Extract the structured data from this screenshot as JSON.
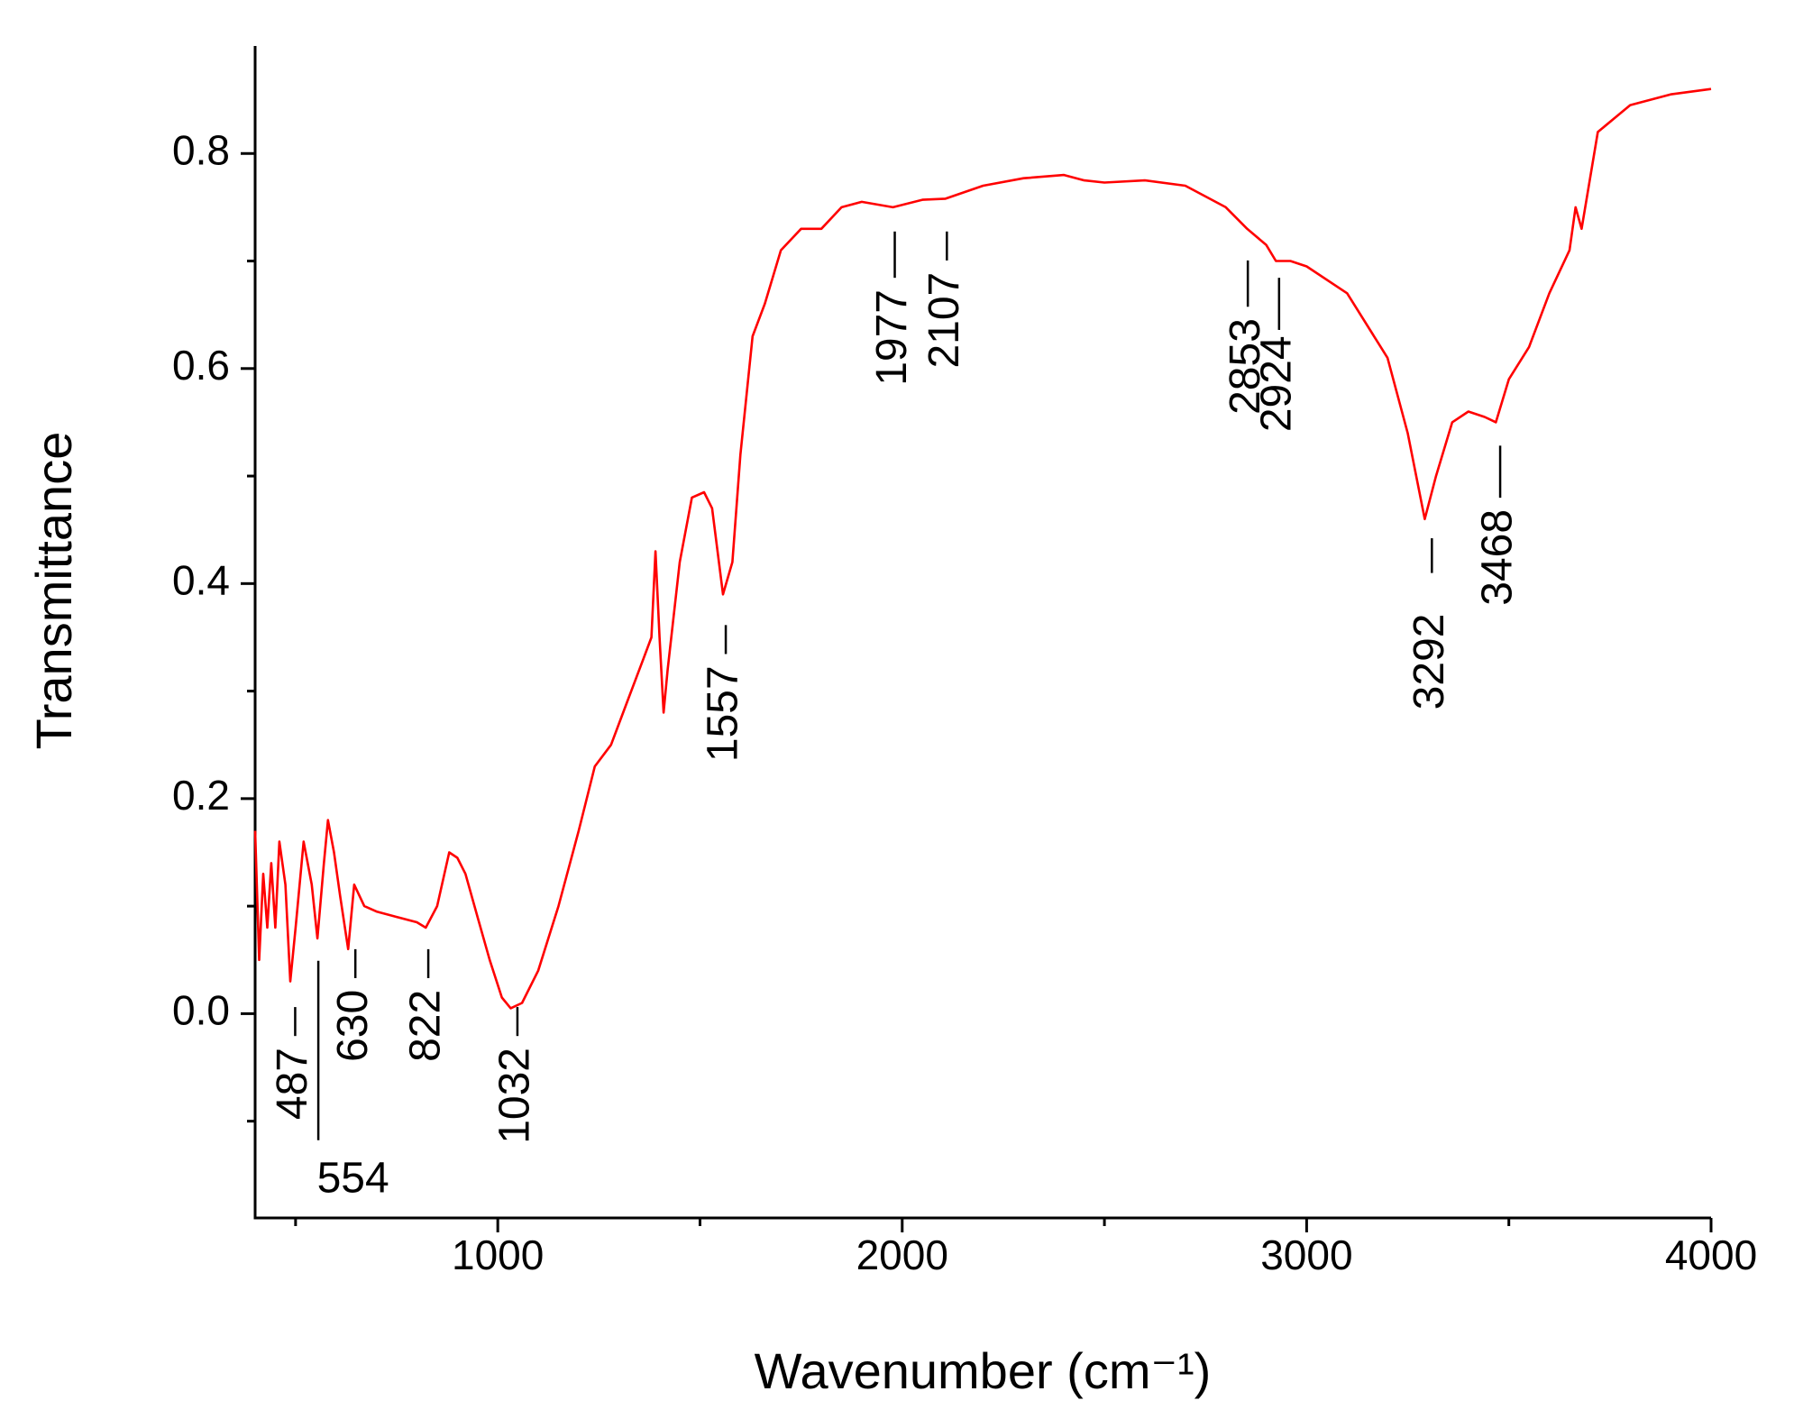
{
  "chart_data": {
    "type": "line",
    "xlabel": "Wavenumber (cm⁻¹)",
    "ylabel": "Transmittance",
    "xlim": [
      400,
      4000
    ],
    "ylim": [
      -0.19,
      0.9
    ],
    "xticks": [
      1000,
      2000,
      3000,
      4000
    ],
    "xticks_minor": [
      500,
      1500,
      2500,
      3500
    ],
    "yticks": [
      {
        "value": 0,
        "label": "0.0"
      },
      0.2,
      0.4,
      0.6,
      0.8
    ],
    "yticks_minor": [
      -0.1,
      0.1,
      0.3,
      0.5,
      0.7
    ],
    "peaks": [
      487,
      554,
      630,
      822,
      1032,
      1557,
      1977,
      2107,
      2853,
      2924,
      3292,
      3468
    ],
    "series": [
      {
        "color": "#ff0000",
        "x": [
          400,
          410,
          420,
          430,
          440,
          450,
          460,
          475,
          487,
          500,
          520,
          540,
          554,
          570,
          580,
          595,
          610,
          630,
          645,
          670,
          700,
          750,
          800,
          822,
          850,
          880,
          900,
          920,
          950,
          980,
          1010,
          1032,
          1060,
          1100,
          1150,
          1200,
          1240,
          1280,
          1320,
          1360,
          1380,
          1390,
          1400,
          1410,
          1420,
          1450,
          1480,
          1510,
          1530,
          1557,
          1580,
          1600,
          1630,
          1660,
          1700,
          1750,
          1800,
          1850,
          1900,
          1977,
          2050,
          2107,
          2200,
          2300,
          2400,
          2450,
          2500,
          2600,
          2700,
          2800,
          2853,
          2900,
          2924,
          2960,
          3000,
          3100,
          3200,
          3250,
          3292,
          3320,
          3360,
          3400,
          3440,
          3468,
          3500,
          3550,
          3600,
          3650,
          3665,
          3680,
          3720,
          3800,
          3900,
          4000
        ],
        "values": [
          0.17,
          0.05,
          0.13,
          0.08,
          0.14,
          0.08,
          0.16,
          0.12,
          0.03,
          0.08,
          0.16,
          0.12,
          0.07,
          0.14,
          0.18,
          0.15,
          0.11,
          0.06,
          0.12,
          0.1,
          0.095,
          0.09,
          0.085,
          0.08,
          0.1,
          0.15,
          0.145,
          0.13,
          0.09,
          0.05,
          0.015,
          0.005,
          0.01,
          0.04,
          0.1,
          0.17,
          0.23,
          0.25,
          0.29,
          0.33,
          0.35,
          0.43,
          0.35,
          0.28,
          0.32,
          0.42,
          0.48,
          0.485,
          0.47,
          0.39,
          0.42,
          0.52,
          0.63,
          0.66,
          0.71,
          0.73,
          0.73,
          0.75,
          0.755,
          0.75,
          0.757,
          0.758,
          0.77,
          0.777,
          0.78,
          0.775,
          0.773,
          0.775,
          0.77,
          0.75,
          0.73,
          0.715,
          0.7,
          0.7,
          0.695,
          0.67,
          0.61,
          0.54,
          0.46,
          0.5,
          0.55,
          0.56,
          0.555,
          0.55,
          0.59,
          0.62,
          0.67,
          0.71,
          0.75,
          0.73,
          0.82,
          0.845,
          0.855,
          0.86
        ]
      }
    ]
  }
}
